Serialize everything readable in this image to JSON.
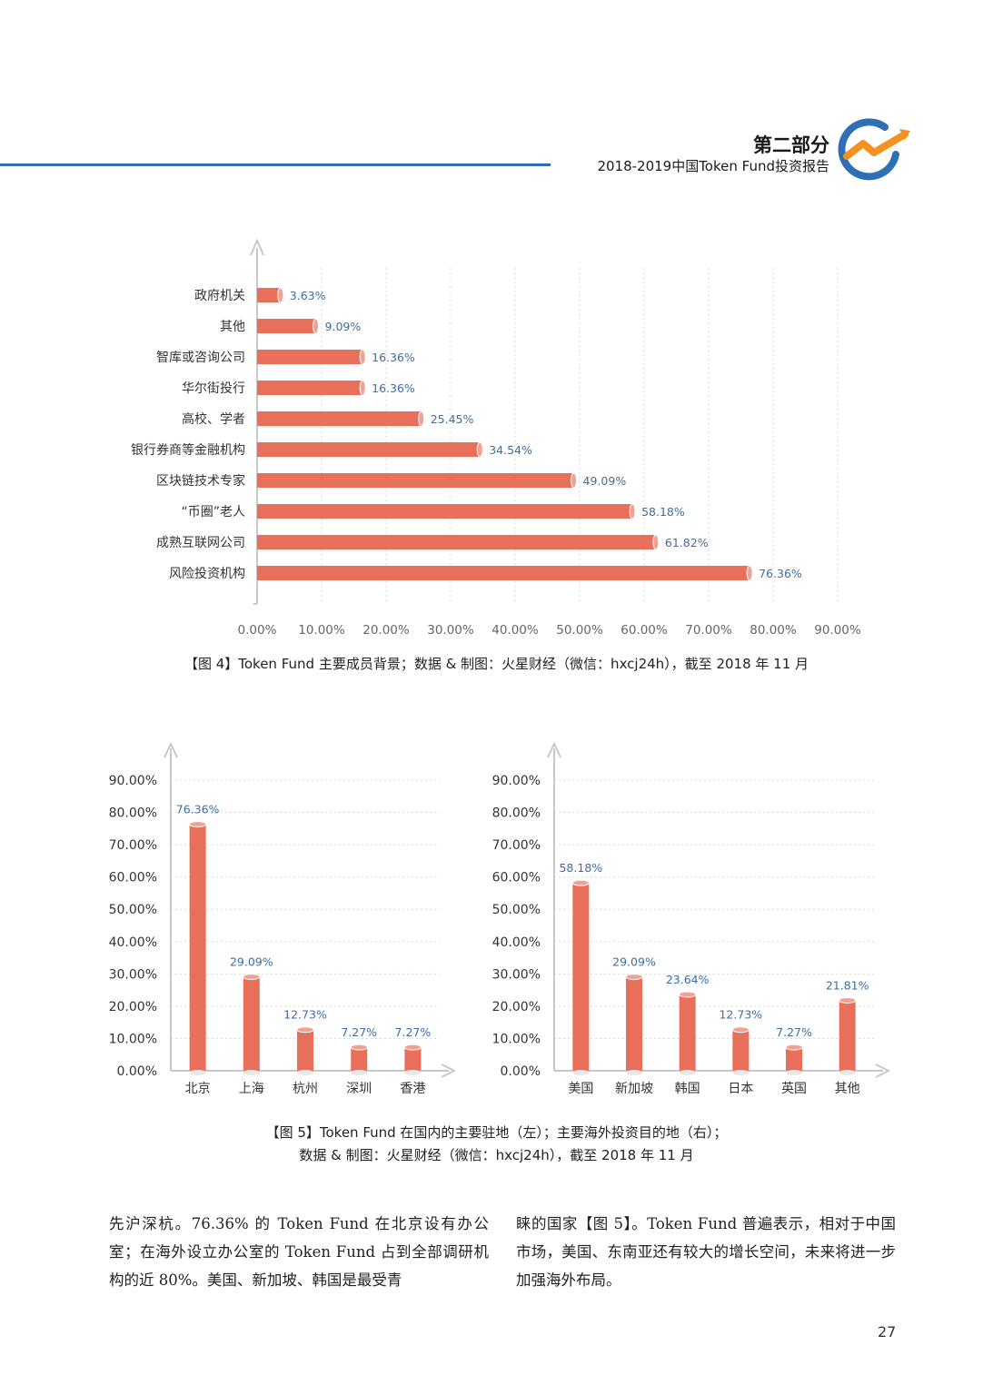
{
  "header": {
    "section": "第二部分",
    "report_title": "2018-2019中国Token Fund投资报告",
    "logo_icon": "growth-line-circle-icon",
    "accent_color": "#2f6fb5",
    "accent_orange": "#f39221"
  },
  "figure4": {
    "caption": "【图 4】Token Fund 主要成员背景；数据 & 制图：火星财经（微信：hxcj24h），截至 2018 年 11 月"
  },
  "figure5": {
    "caption_line1": "【图 5】Token Fund 在国内的主要驻地（左）；主要海外投资目的地（右）；",
    "caption_line2": "数据 & 制图：火星财经（微信：hxcj24h），截至 2018 年 11 月"
  },
  "body": {
    "left_column": "先沪深杭。76.36% 的 Token Fund 在北京设有办公室；在海外设立办公室的 Token Fund 占到全部调研机构的近 80%。美国、新加坡、韩国是最受青",
    "right_column": "睐的国家【图 5】。Token Fund 普遍表示，相对于中国市场，美国、东南亚还有较大的增长空间，未来将进一步加强海外布局。"
  },
  "page_number": "27",
  "chart_data": [
    {
      "type": "bar",
      "orientation": "horizontal",
      "bar_color": "#e8705a",
      "label_color": "#3a6ea5",
      "categories": [
        "政府机关",
        "其他",
        "智库或咨询公司",
        "华尔街投行",
        "高校、学者",
        "银行券商等金融机构",
        "区块链技术专家",
        "“币圈”老人",
        "成熟互联网公司",
        "风险投资机构"
      ],
      "values": [
        3.63,
        9.09,
        16.36,
        16.36,
        25.45,
        34.54,
        49.09,
        58.18,
        61.82,
        76.36
      ],
      "value_labels": [
        "3.63%",
        "9.09%",
        "16.36%",
        "16.36%",
        "25.45%",
        "34.54%",
        "49.09%",
        "58.18%",
        "61.82%",
        "76.36%"
      ],
      "xlim": [
        0,
        90
      ],
      "tick_labels": [
        "0.00%",
        "10.00%",
        "20.00%",
        "30.00%",
        "40.00%",
        "50.00%",
        "60.00%",
        "70.00%",
        "80.00%",
        "90.00%"
      ],
      "grid": true
    },
    {
      "type": "bar",
      "bar_color": "#e8705a",
      "label_color": "#3a6ea5",
      "categories": [
        "北京",
        "上海",
        "杭州",
        "深圳",
        "香港"
      ],
      "values": [
        76.36,
        29.09,
        12.73,
        7.27,
        7.27
      ],
      "value_labels": [
        "76.36%",
        "29.09%",
        "12.73%",
        "7.27%",
        "7.27%"
      ],
      "ylim": [
        0,
        90
      ],
      "tick_labels": [
        "0.00%",
        "10.00%",
        "20.00%",
        "30.00%",
        "40.00%",
        "50.00%",
        "60.00%",
        "70.00%",
        "80.00%",
        "90.00%"
      ],
      "grid": true
    },
    {
      "type": "bar",
      "bar_color": "#e8705a",
      "label_color": "#3a6ea5",
      "categories": [
        "美国",
        "新加坡",
        "韩国",
        "日本",
        "英国",
        "其他"
      ],
      "values": [
        58.18,
        29.09,
        23.64,
        12.73,
        7.27,
        21.81
      ],
      "value_labels": [
        "58.18%",
        "29.09%",
        "23.64%",
        "12.73%",
        "7.27%",
        "21.81%"
      ],
      "ylim": [
        0,
        90
      ],
      "tick_labels": [
        "0.00%",
        "10.00%",
        "20.00%",
        "30.00%",
        "40.00%",
        "50.00%",
        "60.00%",
        "70.00%",
        "80.00%",
        "90.00%"
      ],
      "grid": true
    }
  ]
}
